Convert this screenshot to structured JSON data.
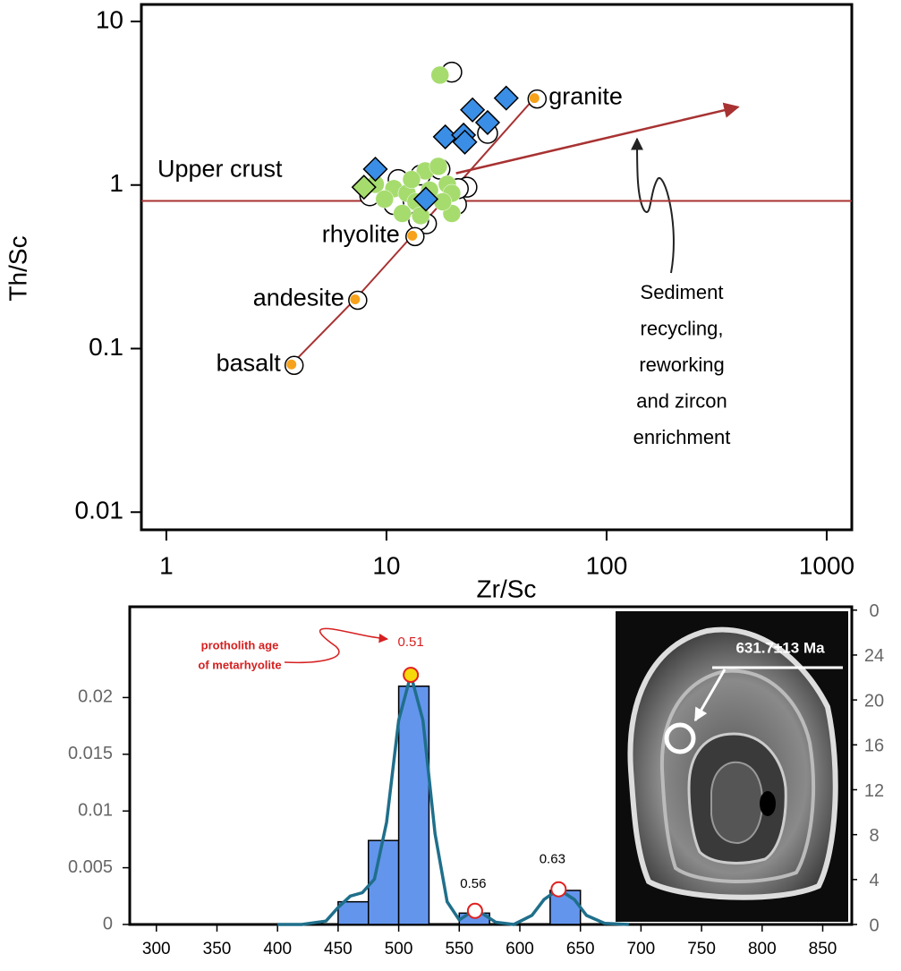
{
  "chart_data": [
    {
      "type": "scatter",
      "xlabel": "Zr/Sc",
      "ylabel": "Th/Sc",
      "xscale": "log",
      "yscale": "log",
      "xlim": [
        0.77,
        1300
      ],
      "ylim": [
        0.0078,
        12.7
      ],
      "xticks": [
        1,
        10,
        100,
        1000
      ],
      "yticks": [
        0.01,
        0.1,
        1,
        10
      ],
      "series": [
        {
          "marker": "open-circle",
          "color": "#000000",
          "x": [
            19.8,
            8.4,
            11.3,
            14.3,
            17.5,
            23.2,
            20.8,
            15.2,
            14.0,
            28.8,
            10.8,
            21.2
          ],
          "y": [
            4.9,
            0.86,
            1.08,
            1.15,
            1.25,
            0.97,
            0.76,
            0.58,
            0.61,
            2.07,
            0.76,
            0.95
          ]
        },
        {
          "marker": "circle",
          "color": "#a6dc6e",
          "x": [
            17.5,
            8.9,
            10.8,
            12.4,
            13.6,
            15.0,
            17.2,
            18.9,
            19.8,
            11.8,
            14.3,
            19.8,
            13.0,
            15.7,
            9.8,
            18.0
          ],
          "y": [
            4.7,
            1.01,
            0.95,
            0.89,
            0.79,
            1.22,
            1.3,
            1.01,
            0.89,
            0.67,
            0.65,
            0.67,
            1.08,
            0.93,
            0.82,
            0.79
          ]
        },
        {
          "marker": "diamond",
          "color": "#a6dc6e",
          "x": [
            7.9
          ],
          "y": [
            0.97
          ]
        },
        {
          "marker": "diamond",
          "color": "#3a8ee6",
          "x": [
            8.9,
            18.5,
            22.4,
            22.7,
            24.6,
            28.8,
            35,
            15.1
          ],
          "y": [
            1.25,
            1.97,
            2.02,
            1.83,
            2.88,
            2.41,
            3.4,
            0.82
          ]
        }
      ],
      "reference": {
        "names": [
          "basalt",
          "andesite",
          "rhyolite",
          "granite"
        ],
        "x": [
          3.7,
          7.2,
          13.1,
          47
        ],
        "y": [
          0.08,
          0.2,
          0.49,
          3.4
        ],
        "color": "#f7a21b",
        "line_color": "#a83232"
      },
      "hline": {
        "y": 0.8,
        "label": "Upper crust",
        "color": "#a83232"
      },
      "arrow": {
        "x": [
          20.7,
          396
        ],
        "y": [
          1.18,
          3.0
        ],
        "color": "#a83232"
      },
      "annotation": [
        "Sediment",
        "recycling,",
        "reworking",
        "and zircon",
        "enrichment"
      ]
    },
    {
      "type": "histogram",
      "bins": [
        450,
        475,
        500,
        525,
        550,
        575,
        600,
        625,
        650
      ],
      "values": [
        0.002,
        0.0074,
        0.021,
        0,
        0.001,
        0,
        0,
        0.003
      ],
      "color": "#6495ed",
      "xlim": [
        278,
        874
      ],
      "xticks": [
        300,
        350,
        400,
        450,
        500,
        550,
        600,
        650,
        700,
        750,
        800,
        850
      ],
      "ylim": [
        0,
        0.028
      ],
      "yticks": [
        0,
        0.005,
        0.01,
        0.015,
        0.02
      ],
      "y2lim": [
        0,
        28.3
      ],
      "y2ticks": [
        0,
        4,
        8,
        12,
        16,
        20,
        24,
        {
          "value": 28,
          "label": "0"
        }
      ],
      "kde": {
        "color": "#1f6f8b",
        "x": [
          400,
          420,
          440,
          450,
          460,
          470,
          480,
          490,
          500,
          510,
          520,
          530,
          540,
          550,
          560,
          565,
          570,
          580,
          595,
          610,
          620,
          632,
          645,
          655,
          670,
          690
        ],
        "values": [
          0,
          0,
          0.0003,
          0.0015,
          0.0025,
          0.0028,
          0.004,
          0.009,
          0.018,
          0.022,
          0.018,
          0.008,
          0.002,
          0.0004,
          0.0011,
          0.0012,
          0.0009,
          0.0002,
          0,
          0.0008,
          0.0022,
          0.0031,
          0.0022,
          0.0008,
          0.0001,
          0
        ]
      },
      "peaks": {
        "x": [
          510,
          563,
          632
        ],
        "y": [
          0.022,
          0.0012,
          0.0031
        ],
        "labels": [
          "0.51",
          "0.56",
          "0.63"
        ]
      },
      "annotation": [
        "protholith age",
        "of metarhyolite"
      ],
      "inset": {
        "label": "631.7±13 Ma"
      }
    }
  ]
}
